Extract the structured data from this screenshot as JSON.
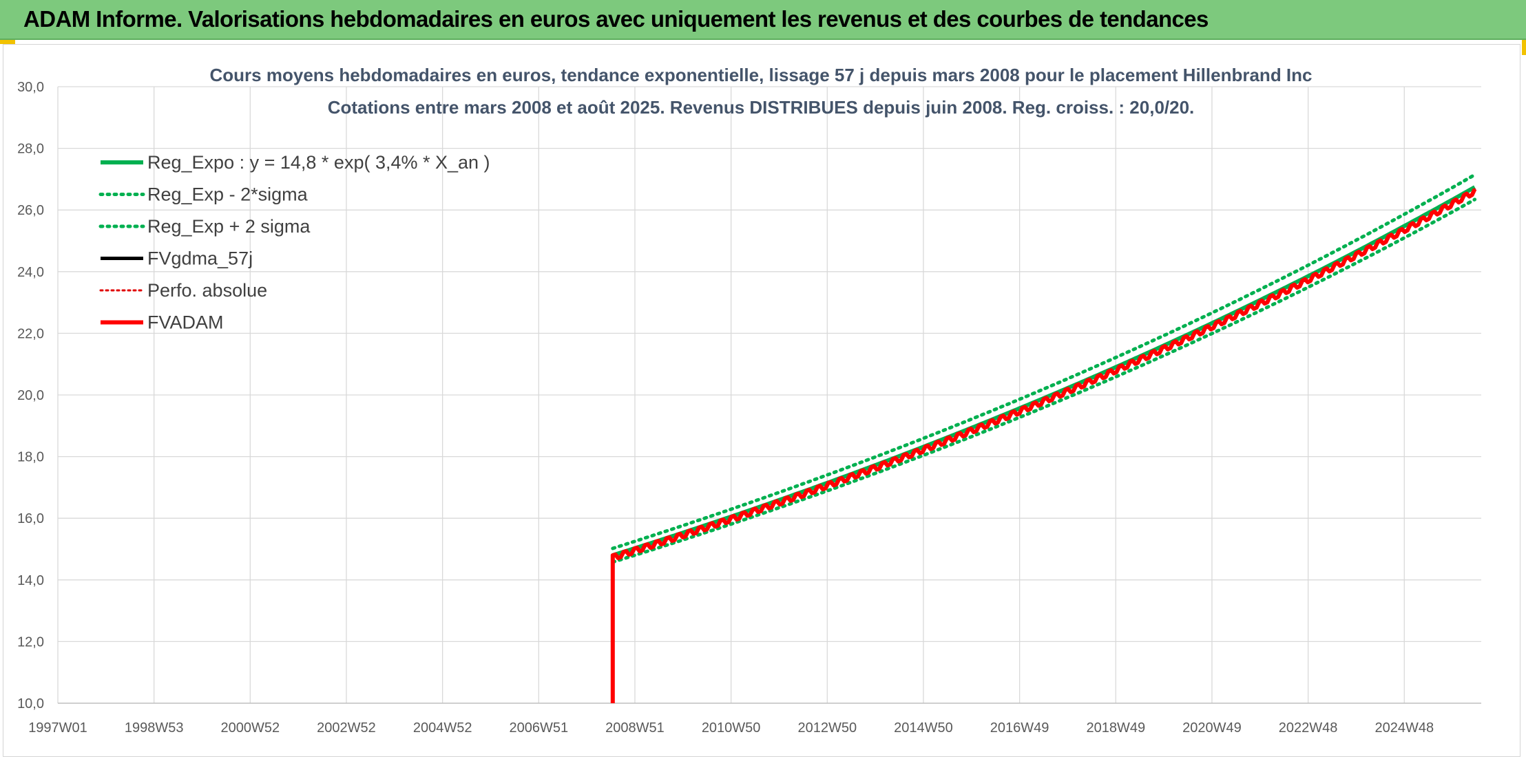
{
  "banner": {
    "title": "ADAM Informe. Valorisations hebdomadaires en euros avec uniquement les revenus et des courbes de tendances"
  },
  "colors": {
    "banner_bg": "#7dc97d",
    "reg_expo": "#00b050",
    "sigma": "#00b050",
    "fvgdma": "#000000",
    "perfo": "#e00000",
    "fvadam": "#ff0000"
  },
  "chart_data": {
    "type": "line",
    "title": "Cours moyens hebdomadaires en euros, tendance exponentielle, lissage 57 j depuis mars 2008 pour le placement Hillenbrand Inc",
    "subtitle": "Cotations entre mars 2008 et août 2025. Revenus DISTRIBUES depuis juin 2008. Reg. croiss. : 20,0/20.",
    "xlabel": "",
    "ylabel": "",
    "ylim": [
      10,
      30
    ],
    "xlim": [
      1997.0,
      2025.73
    ],
    "y_ticks": [
      "10,0",
      "12,0",
      "14,0",
      "16,0",
      "18,0",
      "20,0",
      "22,0",
      "24,0",
      "26,0",
      "28,0",
      "30,0"
    ],
    "x_ticks": [
      "1997W01",
      "1998W53",
      "2000W52",
      "2002W52",
      "2004W52",
      "2006W51",
      "2008W51",
      "2010W50",
      "2012W50",
      "2014W50",
      "2016W49",
      "2018W49",
      "2020W49",
      "2022W48",
      "2024W48"
    ],
    "grid": true,
    "legend_position": "top-left",
    "regression": {
      "base": 14.8,
      "rate": 0.034,
      "start": 2008.2,
      "end": 2025.6
    },
    "series": [
      {
        "name": "Reg_Expo : y = 14,8 * exp( 3,4% *  X_an )",
        "style": "solid-thick",
        "x": [
          2008.2,
          2010,
          2012,
          2014,
          2016,
          2018,
          2020,
          2022,
          2024,
          2025.6
        ],
        "y": [
          14.8,
          15.7,
          16.8,
          18.0,
          19.3,
          20.7,
          22.1,
          23.7,
          25.4,
          26.8
        ]
      },
      {
        "name": "Reg_Exp - 2*sigma",
        "style": "dotted",
        "x": [
          2008.2,
          2010,
          2012,
          2014,
          2016,
          2018,
          2020,
          2022,
          2024,
          2025.6
        ],
        "y": [
          14.6,
          15.5,
          16.6,
          17.8,
          19.1,
          20.5,
          21.9,
          23.5,
          25.2,
          26.6
        ]
      },
      {
        "name": "Reg_Exp + 2 sigma",
        "style": "dotted",
        "x": [
          2008.2,
          2010,
          2012,
          2014,
          2016,
          2018,
          2020,
          2022,
          2024,
          2025.6
        ],
        "y": [
          15.0,
          15.9,
          17.0,
          18.2,
          19.5,
          20.9,
          22.3,
          23.9,
          25.6,
          27.0
        ]
      },
      {
        "name": "FVgdma_57j",
        "style": "solid",
        "x": [
          2008.2,
          2010,
          2012,
          2014,
          2016,
          2018,
          2020,
          2022,
          2024,
          2025.6
        ],
        "y": [
          14.7,
          15.6,
          16.7,
          17.9,
          19.2,
          20.6,
          22.0,
          23.6,
          25.3,
          26.6
        ]
      },
      {
        "name": "Perfo. absolue",
        "style": "dotted-thin",
        "x": [
          2008.2,
          2010,
          2012,
          2014,
          2016,
          2018,
          2020,
          2022,
          2024,
          2025.6
        ],
        "y": [
          14.7,
          15.6,
          16.7,
          17.9,
          19.2,
          20.6,
          22.0,
          23.6,
          25.3,
          26.6
        ]
      },
      {
        "name": "FVADAM",
        "style": "solid-thick",
        "x": [
          2008.2,
          2008.2,
          2010,
          2012,
          2014,
          2016,
          2018,
          2020,
          2022,
          2024,
          2025.6
        ],
        "y": [
          10.0,
          14.8,
          15.6,
          16.7,
          17.9,
          19.2,
          20.6,
          22.0,
          23.6,
          25.3,
          26.6
        ]
      }
    ]
  }
}
